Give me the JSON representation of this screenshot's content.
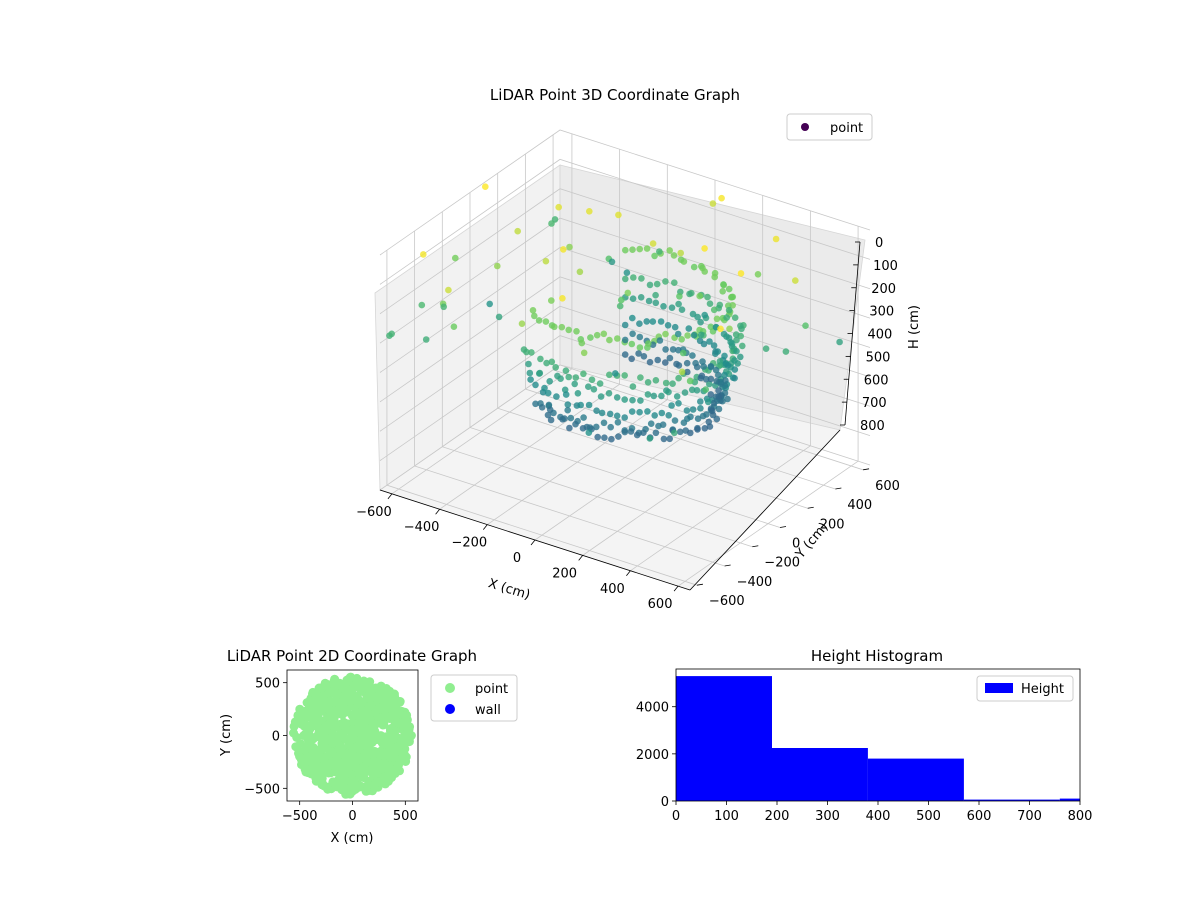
{
  "chart_data": [
    {
      "type": "scatter",
      "title": "LiDAR Point 3D Coordinate Graph",
      "xlabel": "X (cm)",
      "ylabel": "Y (cm)",
      "zlabel": "H (cm)",
      "xlim": [
        -650,
        650
      ],
      "ylim": [
        -650,
        650
      ],
      "zlim": [
        800,
        0
      ],
      "z_axis_inverted": true,
      "x_ticks": [
        "−600",
        "−400",
        "−200",
        "0",
        "200",
        "400",
        "600"
      ],
      "y_ticks": [
        "−600",
        "−400",
        "−200",
        "0",
        "200",
        "400",
        "600"
      ],
      "z_ticks": [
        "0",
        "100",
        "200",
        "300",
        "400",
        "500",
        "600",
        "700",
        "800"
      ],
      "colormap": "viridis",
      "grid": true,
      "legend": {
        "entries": [
          "point"
        ],
        "placement": "top-right"
      },
      "series": [
        {
          "name": "point",
          "description_of_structure": "stacked roughly circular rings of points around the origin",
          "rings": [
            {
              "h": 180,
              "r": 380
            },
            {
              "h": 300,
              "r": 420
            },
            {
              "h": 360,
              "r": 400
            },
            {
              "h": 420,
              "r": 380
            },
            {
              "h": 480,
              "r": 360
            },
            {
              "h": 520,
              "r": 340
            }
          ]
        }
      ]
    },
    {
      "type": "scatter",
      "title": "LiDAR Point 2D Coordinate Graph",
      "xlabel": "X (cm)",
      "ylabel": "Y (cm)",
      "xlim": [
        -620,
        620
      ],
      "ylim": [
        -620,
        620
      ],
      "x_ticks": [
        "−500",
        "0",
        "500"
      ],
      "y_ticks": [
        "−500",
        "0",
        "500"
      ],
      "legend": {
        "entries": [
          "point",
          "wall"
        ],
        "placement": "outside-right"
      },
      "series": [
        {
          "name": "point",
          "color": "#90ee90",
          "shape": "filled disc, radius about 560, with ragged left edge"
        },
        {
          "name": "wall",
          "color": "#0000ff",
          "points": []
        }
      ]
    },
    {
      "type": "bar",
      "title": "Height Histogram",
      "xlabel": "",
      "ylabel": "",
      "xlim": [
        0,
        800
      ],
      "ylim": [
        0,
        5600
      ],
      "x_ticks": [
        "0",
        "100",
        "200",
        "300",
        "400",
        "500",
        "600",
        "700",
        "800"
      ],
      "y_ticks": [
        "0",
        "2000",
        "4000"
      ],
      "legend": {
        "entries": [
          "Height"
        ],
        "placement": "top-right"
      },
      "series": [
        {
          "name": "Height",
          "color": "#0000ff",
          "bins": [
            {
              "x0": 0,
              "x1": 190,
              "count": 5300
            },
            {
              "x0": 190,
              "x1": 380,
              "count": 2250
            },
            {
              "x0": 380,
              "x1": 570,
              "count": 1800
            },
            {
              "x0": 570,
              "x1": 760,
              "count": 60
            },
            {
              "x0": 760,
              "x1": 800,
              "count": 100
            }
          ]
        }
      ]
    }
  ]
}
